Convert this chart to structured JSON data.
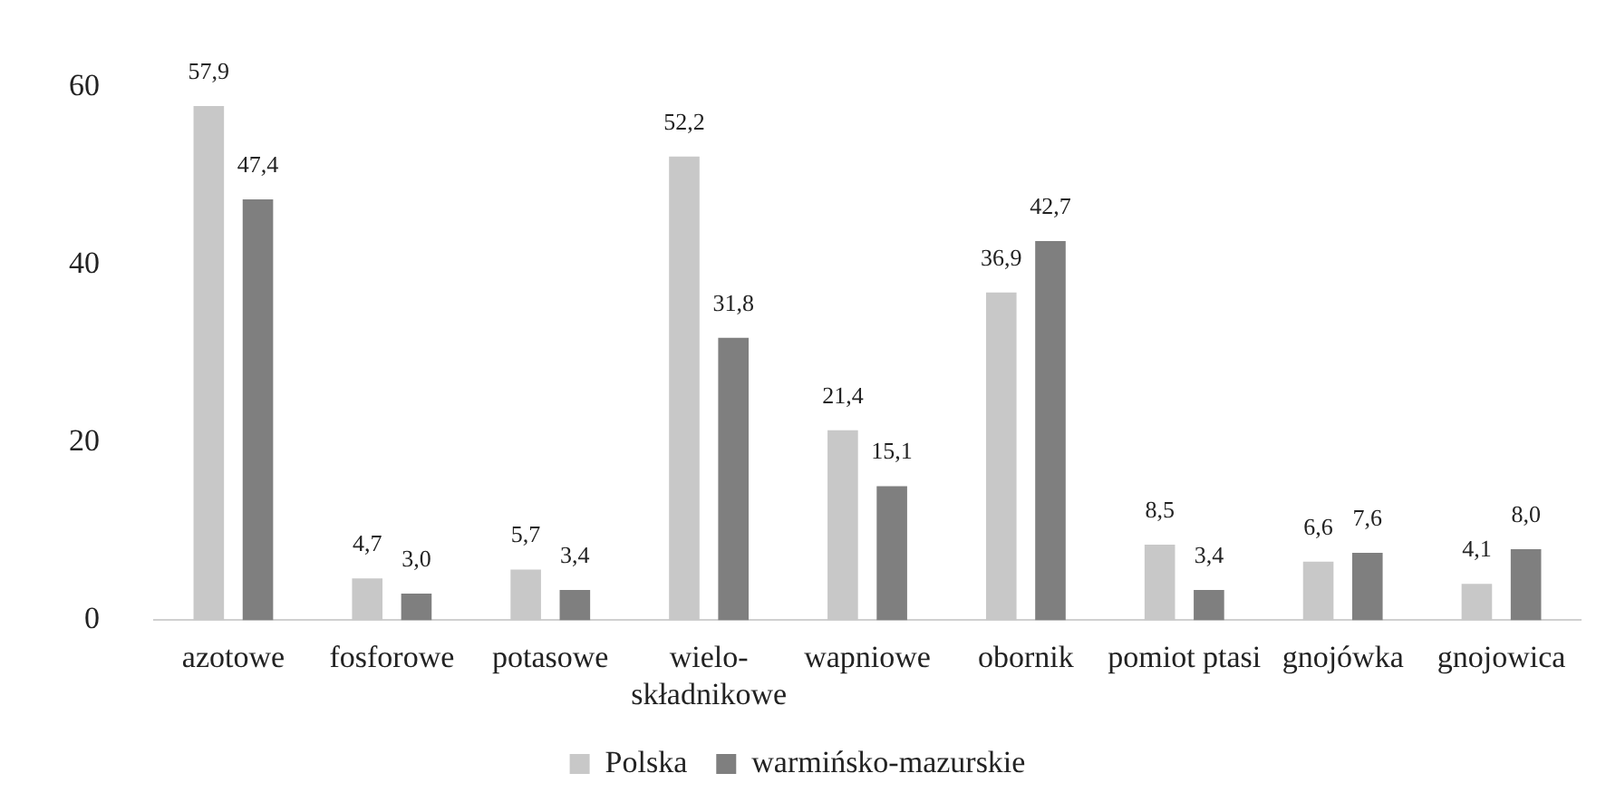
{
  "chart_data": {
    "type": "bar",
    "categories": [
      "azotowe",
      "fosforowe",
      "potasowe",
      "wielo-\nskładnikowe",
      "wapniowe",
      "obornik",
      "pomiot ptasi",
      "gnojówka",
      "gnojowica"
    ],
    "series": [
      {
        "name": "Polska",
        "color": "#c8c8c8",
        "values": [
          57.9,
          4.7,
          5.7,
          52.2,
          21.4,
          36.9,
          8.5,
          6.6,
          4.1
        ],
        "value_labels": [
          "57,9",
          "4,7",
          "5,7",
          "52,2",
          "21,4",
          "36,9",
          "8,5",
          "6,6",
          "4,1"
        ]
      },
      {
        "name": "warmińsko-mazurskie",
        "color": "#7f7f7f",
        "values": [
          47.4,
          3.0,
          3.4,
          31.8,
          15.1,
          42.7,
          3.4,
          7.6,
          8.0
        ],
        "value_labels": [
          "47,4",
          "3,0",
          "3,4",
          "31,8",
          "15,1",
          "42,7",
          "3,4",
          "7,6",
          "8,0"
        ]
      }
    ],
    "ylim": [
      0,
      60
    ],
    "yticks": [
      0,
      20,
      40,
      60
    ],
    "grid": false,
    "legend": "bottom"
  }
}
